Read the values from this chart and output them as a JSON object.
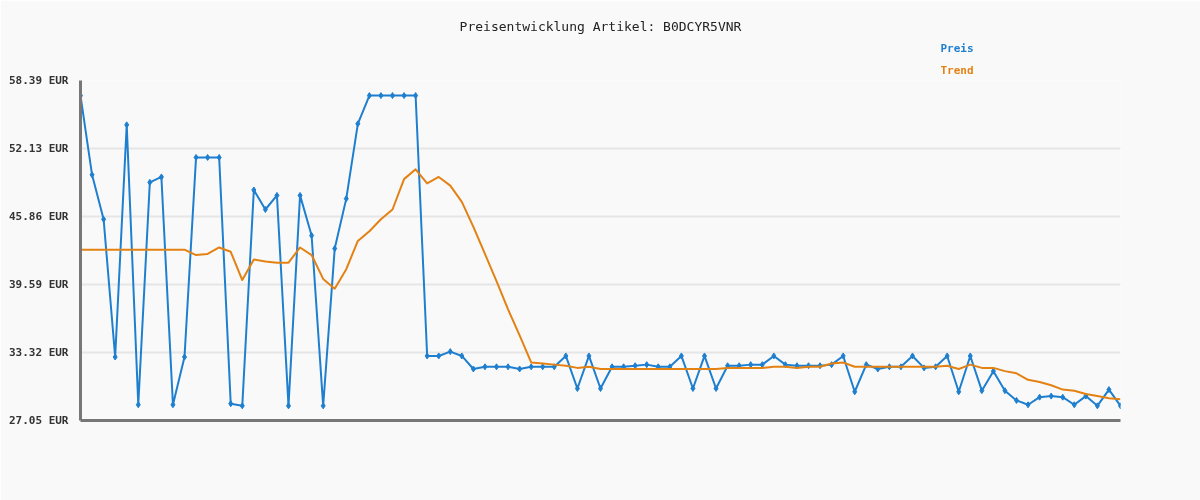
{
  "chart_data": {
    "type": "line",
    "title": "Preisentwicklung Artikel: B0DCYR5VNR",
    "categories": [
      null,
      null,
      null,
      null,
      null,
      null,
      null,
      null,
      null,
      null,
      null,
      null,
      null,
      null,
      null,
      null,
      null,
      null,
      null,
      null,
      null,
      null,
      null,
      null,
      null,
      null,
      null,
      null,
      null,
      null,
      null,
      null,
      null,
      null,
      null,
      null,
      null,
      null,
      null,
      null,
      null,
      null,
      null,
      null,
      null,
      null,
      null,
      null,
      null,
      null,
      null,
      null,
      null,
      null,
      null,
      null,
      null,
      null,
      null,
      null,
      null,
      null,
      null,
      null,
      null,
      null,
      null,
      null,
      null,
      null,
      null,
      null,
      null,
      null,
      null,
      null,
      null,
      null,
      null,
      null,
      null,
      null,
      null,
      null,
      null,
      null,
      null,
      null,
      null,
      null,
      null
    ],
    "series": [
      {
        "name": "Preis",
        "color": "#1f7fcf",
        "marker": "diamond",
        "values": [
          57.0,
          49.7,
          45.6,
          32.9,
          54.3,
          28.5,
          49.0,
          49.5,
          28.5,
          32.9,
          51.3,
          51.3,
          51.3,
          28.6,
          28.4,
          48.3,
          46.5,
          47.8,
          28.4,
          47.8,
          44.1,
          28.4,
          42.9,
          47.5,
          54.4,
          57.0,
          57.0,
          57.0,
          57.0,
          57.0,
          33.0,
          33.0,
          33.4,
          33.0,
          31.8,
          32.0,
          32.0,
          32.0,
          31.8,
          32.0,
          32.0,
          32.0,
          33.0,
          30.0,
          33.0,
          30.0,
          32.0,
          32.0,
          32.1,
          32.2,
          32.0,
          32.0,
          33.0,
          30.0,
          33.0,
          30.0,
          32.1,
          32.1,
          32.2,
          32.2,
          33.0,
          32.2,
          32.1,
          32.1,
          32.1,
          32.2,
          33.0,
          29.7,
          32.2,
          31.8,
          32.0,
          32.0,
          33.0,
          31.9,
          32.0,
          33.0,
          29.7,
          33.0,
          29.8,
          31.6,
          29.8,
          28.9,
          28.5,
          29.2,
          29.3,
          29.2,
          28.5,
          29.3,
          28.4,
          29.9,
          28.4
        ]
      },
      {
        "name": "Trend",
        "color": "#e38213",
        "marker": "none",
        "values": [
          42.8,
          42.8,
          42.8,
          42.8,
          42.8,
          42.8,
          42.8,
          42.8,
          42.8,
          42.8,
          42.3,
          42.4,
          43.0,
          42.6,
          40.0,
          41.9,
          41.7,
          41.6,
          41.6,
          43.0,
          42.3,
          40.1,
          39.2,
          41.0,
          43.6,
          44.5,
          45.6,
          46.5,
          49.3,
          50.2,
          48.9,
          49.5,
          48.7,
          47.2,
          44.9,
          42.4,
          39.9,
          37.3,
          34.9,
          32.4,
          32.3,
          32.2,
          32.1,
          31.9,
          32.0,
          31.8,
          31.8,
          31.8,
          31.8,
          31.8,
          31.8,
          31.8,
          31.8,
          31.8,
          31.8,
          31.8,
          31.9,
          31.9,
          31.9,
          31.9,
          32.0,
          32.0,
          31.9,
          32.0,
          32.0,
          32.3,
          32.4,
          32.0,
          32.0,
          32.0,
          32.0,
          32.0,
          32.0,
          32.0,
          32.0,
          32.1,
          31.8,
          32.2,
          31.9,
          31.9,
          31.6,
          31.4,
          30.8,
          30.6,
          30.3,
          29.9,
          29.8,
          29.5,
          29.3,
          29.1,
          29.0
        ]
      }
    ],
    "ylim": [
      27.05,
      58.39
    ],
    "yticks": [
      {
        "value": 27.05,
        "label": "27.05 EUR"
      },
      {
        "value": 33.32,
        "label": "33.32 EUR"
      },
      {
        "value": 39.59,
        "label": "39.59 EUR"
      },
      {
        "value": 45.86,
        "label": "45.86 EUR"
      },
      {
        "value": 52.13,
        "label": "52.13 EUR"
      },
      {
        "value": 58.39,
        "label": "58.39 EUR"
      }
    ],
    "grid": "y",
    "tick_labels": "y"
  }
}
